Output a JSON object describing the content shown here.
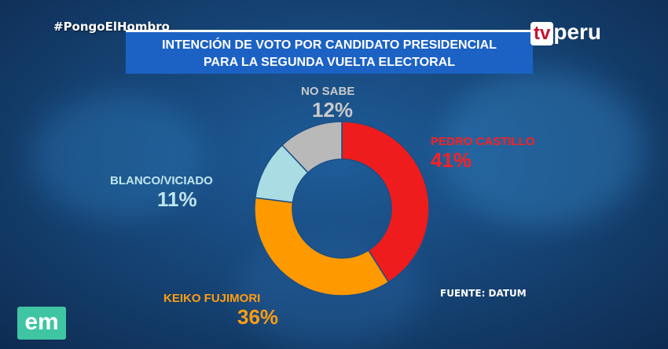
{
  "hashtag": "#PongoElHombro",
  "title": {
    "line1": "INTENCIÓN DE VOTO POR CANDIDATO PRESIDENCIAL",
    "line2": "PARA LA SEGUNDA VUELTA ELECTORAL"
  },
  "logos": {
    "broadcaster": "tvperu",
    "program": "em"
  },
  "source": "FUENTE: DATUM",
  "chart_data": {
    "type": "pie",
    "title": "INTENCIÓN DE VOTO POR CANDIDATO PRESIDENCIAL PARA LA SEGUNDA VUELTA ELECTORAL",
    "donut": true,
    "slices": [
      {
        "label": "PEDRO CASTILLO",
        "value": 41,
        "display": "41%",
        "color": "#ee1c1c"
      },
      {
        "label": "KEIKO FUJIMORI",
        "value": 36,
        "display": "36%",
        "color": "#ff9900"
      },
      {
        "label": "BLANCO/VICIADO",
        "value": 11,
        "display": "11%",
        "color": "#a9dce3"
      },
      {
        "label": "NO SABE",
        "value": 12,
        "display": "12%",
        "color": "#b9b9b9"
      }
    ]
  }
}
